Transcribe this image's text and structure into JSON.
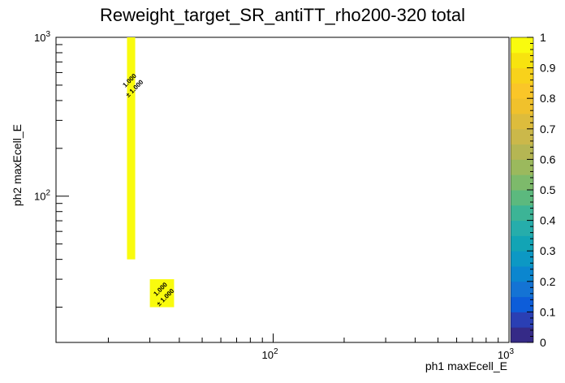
{
  "chart_data": {
    "type": "heatmap",
    "title": "Reweight_target_SR_antiTT_rho200-320 total",
    "xlabel": "ph1 maxEcell_E",
    "ylabel": "ph2 maxEcell_E",
    "x_scale": "log",
    "y_scale": "log",
    "xlim": [
      12,
      1000
    ],
    "ylim": [
      12,
      1000
    ],
    "x_major_ticks": [
      {
        "value": 100,
        "base": "10",
        "exp": "2"
      },
      {
        "value": 1000,
        "base": "10",
        "exp": "3"
      }
    ],
    "y_major_ticks": [
      {
        "value": 100,
        "base": "10",
        "exp": "2"
      },
      {
        "value": 1000,
        "base": "10",
        "exp": "3"
      }
    ],
    "cells": [
      {
        "x0": 24,
        "x1": 26,
        "y0": 40,
        "y1": 1000,
        "value": 1.0,
        "label": "1.000",
        "error_label": "± 1.000"
      },
      {
        "x0": 30,
        "x1": 38,
        "y0": 20,
        "y1": 30,
        "value": 1.0,
        "label": "1.000",
        "error_label": "± 1.000"
      }
    ],
    "colorbar": {
      "min": 0,
      "max": 1,
      "tick_labels": [
        "0",
        "0.1",
        "0.2",
        "0.3",
        "0.4",
        "0.5",
        "0.6",
        "0.7",
        "0.8",
        "0.9",
        "1"
      ],
      "colors": [
        "#352a87",
        "#2a3fb4",
        "#0d5dd9",
        "#1473d4",
        "#0b86cf",
        "#0c98c4",
        "#12a4b5",
        "#26adab",
        "#3cb496",
        "#5cb97e",
        "#7dba6b",
        "#9bb95d",
        "#b5b653",
        "#cbb84a",
        "#ddbc3c",
        "#f0c12c",
        "#fac628",
        "#f8d21b",
        "#f7e30f",
        "#f9fb0e"
      ],
      "high_color": "#f9fb0e"
    }
  }
}
